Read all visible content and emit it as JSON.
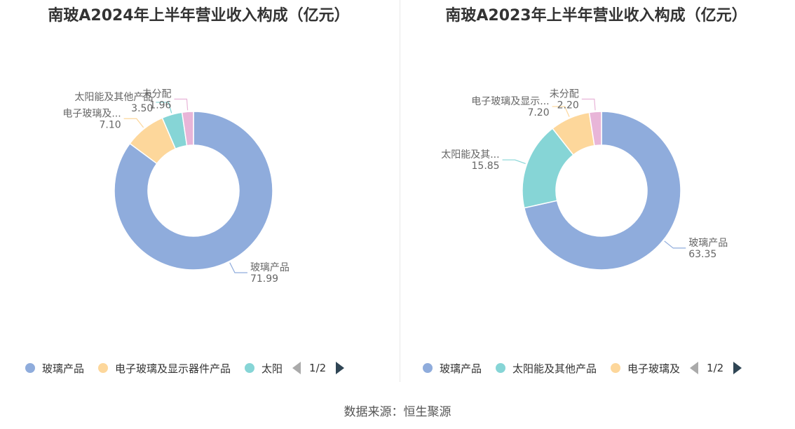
{
  "chart_data": [
    {
      "type": "pie",
      "title": "南玻A2024年上半年营业收入构成（亿元）",
      "slices": [
        {
          "name": "玻璃产品",
          "label": "玻璃产品",
          "value": 71.99,
          "value_text": "71.99",
          "color": "#8facdc"
        },
        {
          "name": "电子玻璃及显示器件产品",
          "label": "电子玻璃及...",
          "value": 7.1,
          "value_text": "7.10",
          "color": "#fdd79b"
        },
        {
          "name": "太阳能及其他产品",
          "label": "太阳能及其他产品",
          "value": 3.5,
          "value_text": "3.50",
          "color": "#86d5d6"
        },
        {
          "name": "未分配",
          "label": "未分配",
          "value": 1.96,
          "value_text": "1.96",
          "color": "#e8b5d8"
        }
      ],
      "legend": {
        "items": [
          "玻璃产品",
          "电子玻璃及显示器件产品",
          "太阳"
        ],
        "page": "1/2"
      }
    },
    {
      "type": "pie",
      "title": "南玻A2023年上半年营业收入构成（亿元）",
      "slices": [
        {
          "name": "玻璃产品",
          "label": "玻璃产品",
          "value": 63.35,
          "value_text": "63.35",
          "color": "#8facdc"
        },
        {
          "name": "太阳能及其他产品",
          "label": "太阳能及其...",
          "value": 15.85,
          "value_text": "15.85",
          "color": "#86d5d6"
        },
        {
          "name": "电子玻璃及显示器件产品",
          "label": "电子玻璃及显示...",
          "value": 7.2,
          "value_text": "7.20",
          "color": "#fdd79b"
        },
        {
          "name": "未分配",
          "label": "未分配",
          "value": 2.2,
          "value_text": "2.20",
          "color": "#e8b5d8"
        }
      ],
      "legend": {
        "items": [
          "玻璃产品",
          "太阳能及其他产品",
          "电子玻璃及"
        ],
        "page": "1/2"
      }
    }
  ],
  "source": "数据来源：恒生聚源"
}
